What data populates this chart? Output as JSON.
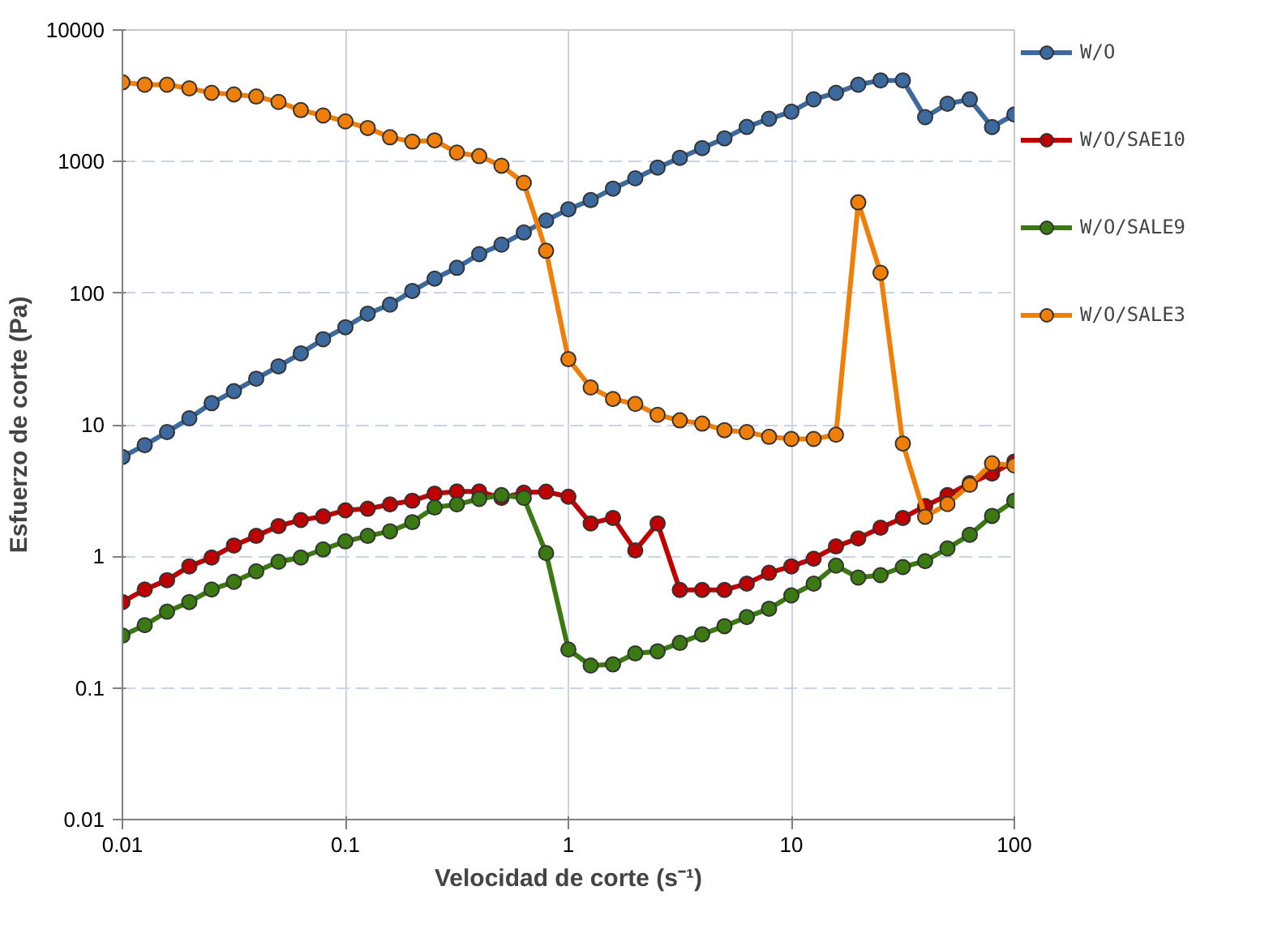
{
  "chart_data": {
    "type": "line",
    "xlabel": "Velocidad de corte (s⁻¹)",
    "ylabel": "Esfuerzo de corte (Pa)",
    "log": "xy",
    "grid": true,
    "legend": "right",
    "marker": "circle",
    "line_style": "solid",
    "xlim": [
      0.01,
      100
    ],
    "xticks": [
      0.01,
      0.1,
      1,
      10,
      100
    ],
    "ylim": [
      0.01,
      10000
    ],
    "yticks": [
      0.01,
      0.1,
      1,
      10,
      100,
      1000,
      10000
    ],
    "x": [
      0.01,
      0.01259,
      0.01585,
      0.01995,
      0.02512,
      0.03162,
      0.03981,
      0.05012,
      0.0631,
      0.07943,
      0.1,
      0.1259,
      0.1585,
      0.1995,
      0.2512,
      0.3162,
      0.3981,
      0.5012,
      0.631,
      0.7943,
      1,
      1.259,
      1.585,
      1.995,
      2.512,
      3.162,
      3.981,
      5.012,
      6.31,
      7.943,
      10,
      12.59,
      15.85,
      19.95,
      25.12,
      31.62,
      39.81,
      50.12,
      63.1,
      79.43,
      100
    ],
    "series": [
      {
        "name": "W/O",
        "color": "#3d6a9e",
        "values": [
          5.7,
          7.0,
          8.8,
          11.2,
          14.6,
          18.0,
          22.4,
          27.8,
          34.9,
          44.7,
          55.1,
          69.9,
          81.9,
          104,
          129,
          156,
          198,
          234,
          289,
          357,
          434,
          510,
          623,
          746,
          901,
          1068,
          1267,
          1502,
          1833,
          2115,
          2393,
          2973,
          3330,
          3840,
          4140,
          4140,
          2175,
          2750,
          2970,
          1830,
          2280
        ]
      },
      {
        "name": "W/O/SAE10",
        "color": "#c00000",
        "values": [
          0.45,
          0.56,
          0.66,
          0.84,
          0.98,
          1.21,
          1.43,
          1.7,
          1.89,
          2.01,
          2.24,
          2.3,
          2.48,
          2.65,
          3.0,
          3.11,
          3.11,
          2.78,
          3.05,
          3.1,
          2.84,
          1.78,
          1.96,
          1.11,
          1.78,
          0.556,
          0.556,
          0.556,
          0.62,
          0.75,
          0.84,
          0.96,
          1.19,
          1.37,
          1.65,
          1.96,
          2.41,
          2.92,
          3.6,
          4.26,
          5.25
        ]
      },
      {
        "name": "W/O/SALE9",
        "color": "#3b7a12",
        "values": [
          0.25,
          0.3,
          0.38,
          0.45,
          0.56,
          0.64,
          0.77,
          0.91,
          0.98,
          1.13,
          1.3,
          1.43,
          1.55,
          1.82,
          2.35,
          2.48,
          2.73,
          2.92,
          2.78,
          1.06,
          0.196,
          0.148,
          0.151,
          0.183,
          0.19,
          0.22,
          0.256,
          0.295,
          0.346,
          0.4,
          0.505,
          0.62,
          0.85,
          0.69,
          0.72,
          0.83,
          0.92,
          1.15,
          1.46,
          2.03,
          2.65
        ]
      },
      {
        "name": "W/O/SALE3",
        "color": "#f07f09",
        "values": [
          4000,
          3840,
          3840,
          3600,
          3330,
          3240,
          3120,
          2840,
          2460,
          2240,
          2020,
          1800,
          1530,
          1420,
          1450,
          1170,
          1100,
          930,
          690,
          210,
          31.5,
          19.2,
          15.7,
          14.4,
          11.9,
          10.8,
          10.2,
          9.1,
          8.8,
          8.1,
          7.8,
          7.8,
          8.4,
          490,
          143,
          7.2,
          2.0,
          2.5,
          3.5,
          5.1,
          4.9
        ]
      }
    ]
  }
}
